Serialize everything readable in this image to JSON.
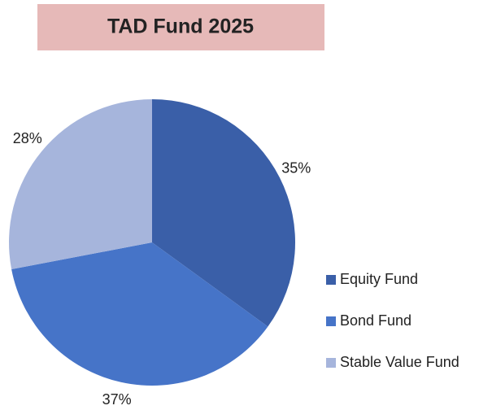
{
  "chart_data": {
    "type": "pie",
    "title": "TAD Fund 2025",
    "categories": [
      "Equity Fund",
      "Bond Fund",
      "Stable Value Fund"
    ],
    "values": [
      35,
      37,
      28
    ],
    "value_labels": [
      "35%",
      "37%",
      "28%"
    ],
    "colors": [
      "#3a5fa8",
      "#4674c8",
      "#a6b5dc"
    ],
    "legend": "right"
  }
}
